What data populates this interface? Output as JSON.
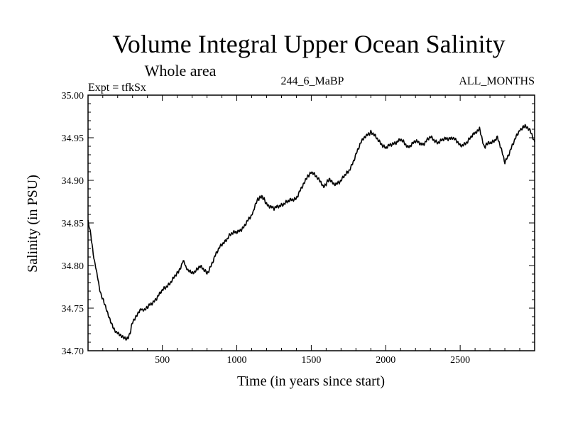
{
  "chart_data": {
    "type": "line",
    "title": "Volume Integral Upper Ocean Salinity",
    "subtitle": "Whole area",
    "annotations": {
      "left": "Expt = tfkSx",
      "center": "244_6_MaBP",
      "right": "ALL_MONTHS"
    },
    "xlabel": "Time (in years since start)",
    "ylabel": "Salinity (in PSU)",
    "xlim": [
      1,
      3000
    ],
    "ylim": [
      34.7,
      35.0
    ],
    "xticks": [
      500,
      1000,
      1500,
      2000,
      2500
    ],
    "xtick_labels": [
      "500",
      "1000",
      "1500",
      "2000",
      "2500"
    ],
    "yticks": [
      34.7,
      34.75,
      34.8,
      34.85,
      34.9,
      34.95,
      35.0
    ],
    "ytick_labels": [
      "34.70",
      "34.75",
      "34.80",
      "34.85",
      "34.90",
      "34.95",
      "35.00"
    ],
    "grid": false,
    "series": [
      {
        "name": "Salinity",
        "x": [
          1,
          20,
          40,
          60,
          80,
          100,
          130,
          160,
          200,
          230,
          260,
          280,
          300,
          330,
          360,
          400,
          450,
          500,
          550,
          600,
          640,
          660,
          700,
          750,
          800,
          850,
          900,
          950,
          1000,
          1050,
          1100,
          1140,
          1160,
          1200,
          1250,
          1300,
          1350,
          1400,
          1450,
          1480,
          1500,
          1550,
          1580,
          1620,
          1650,
          1700,
          1750,
          1800,
          1850,
          1880,
          1900,
          1950,
          2000,
          2050,
          2100,
          2150,
          2200,
          2250,
          2300,
          2350,
          2400,
          2450,
          2500,
          2550,
          2600,
          2630,
          2660,
          2700,
          2750,
          2800,
          2850,
          2900,
          2940,
          2970,
          3000
        ],
        "values": [
          34.851,
          34.835,
          34.81,
          34.79,
          34.772,
          34.76,
          34.745,
          34.73,
          34.72,
          34.716,
          34.712,
          34.72,
          34.733,
          34.741,
          34.748,
          34.75,
          34.76,
          34.77,
          34.78,
          34.79,
          34.805,
          34.798,
          34.79,
          34.8,
          34.79,
          34.81,
          34.825,
          34.835,
          34.84,
          34.845,
          34.86,
          34.877,
          34.882,
          34.873,
          34.866,
          34.872,
          34.875,
          34.88,
          34.895,
          34.905,
          34.911,
          34.9,
          34.893,
          34.9,
          34.895,
          34.9,
          34.91,
          34.93,
          34.95,
          34.955,
          34.956,
          34.948,
          34.937,
          34.944,
          34.947,
          34.94,
          34.945,
          34.943,
          34.95,
          34.945,
          34.948,
          34.951,
          34.94,
          34.946,
          34.955,
          34.962,
          34.94,
          34.944,
          34.95,
          34.922,
          34.94,
          34.96,
          34.963,
          34.96,
          34.945
        ]
      }
    ]
  }
}
